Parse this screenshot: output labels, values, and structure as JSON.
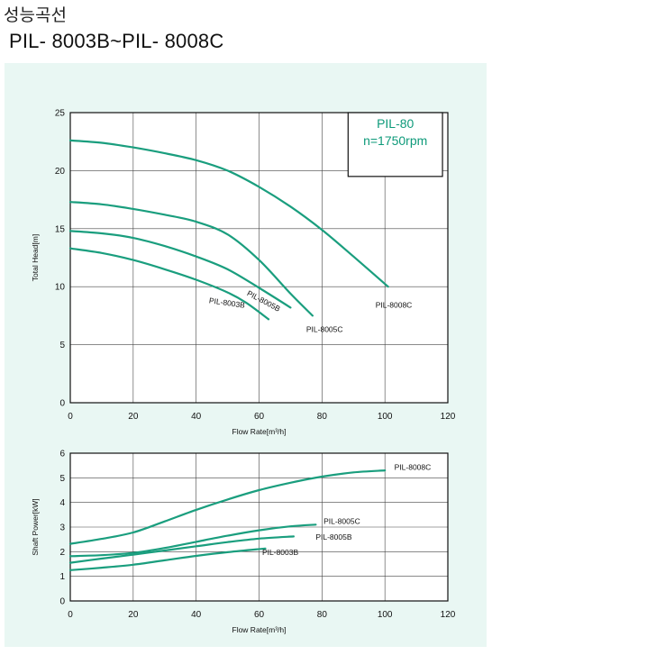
{
  "header": {
    "title": "성능곡선",
    "model_range": "PIL- 8003B~PIL- 8008C"
  },
  "colors": {
    "curve": "#1a9e7e",
    "panel_bg": "#e9f7f3",
    "note_text": "#0e9a7a"
  },
  "chart_data": [
    {
      "type": "line",
      "title": "",
      "xlabel": "Flow Rate[m³/h]",
      "ylabel": "Total Head[m]",
      "xlim": [
        0,
        120
      ],
      "ylim": [
        0,
        25
      ],
      "x_ticks": [
        "0",
        "20",
        "40",
        "60",
        "80",
        "100",
        "120"
      ],
      "y_ticks": [
        "0",
        "5",
        "10",
        "15",
        "20",
        "25"
      ],
      "grid": true,
      "annotation": {
        "line1": "PIL-80",
        "line2": "n=1750rpm"
      },
      "series": [
        {
          "name": "PIL-8003B",
          "points": [
            [
              0,
              13.3
            ],
            [
              10,
              12.9
            ],
            [
              20,
              12.3
            ],
            [
              30,
              11.5
            ],
            [
              40,
              10.6
            ],
            [
              50,
              9.5
            ],
            [
              56,
              8.6
            ],
            [
              63,
              7.2
            ]
          ]
        },
        {
          "name": "PIL-8005B",
          "points": [
            [
              0,
              14.8
            ],
            [
              10,
              14.6
            ],
            [
              20,
              14.2
            ],
            [
              30,
              13.5
            ],
            [
              40,
              12.6
            ],
            [
              50,
              11.5
            ],
            [
              60,
              9.9
            ],
            [
              70,
              8.2
            ]
          ]
        },
        {
          "name": "PIL-8005C",
          "points": [
            [
              0,
              17.3
            ],
            [
              10,
              17.1
            ],
            [
              20,
              16.7
            ],
            [
              30,
              16.2
            ],
            [
              40,
              15.6
            ],
            [
              50,
              14.5
            ],
            [
              60,
              12.3
            ],
            [
              70,
              9.4
            ],
            [
              77,
              7.5
            ]
          ]
        },
        {
          "name": "PIL-8008C",
          "points": [
            [
              0,
              22.6
            ],
            [
              10,
              22.4
            ],
            [
              20,
              22.0
            ],
            [
              30,
              21.5
            ],
            [
              40,
              20.9
            ],
            [
              50,
              20.0
            ],
            [
              60,
              18.6
            ],
            [
              70,
              16.9
            ],
            [
              80,
              14.9
            ],
            [
              90,
              12.6
            ],
            [
              101,
              10.0
            ]
          ]
        }
      ],
      "curve_labels": [
        {
          "text": "PIL-8003B",
          "x": 44,
          "y": 8.6,
          "rotate": 8
        },
        {
          "text": "PIL-8005B",
          "x": 56,
          "y": 9.3,
          "rotate": 28
        },
        {
          "text": "PIL-8005C",
          "x": 75,
          "y": 6.1,
          "rotate": 0
        },
        {
          "text": "PIL-8008C",
          "x": 97,
          "y": 8.2,
          "rotate": 0
        }
      ]
    },
    {
      "type": "line",
      "title": "",
      "xlabel": "Flow Rate[m³/h]",
      "ylabel": "Shaft Power[kW]",
      "xlim": [
        0,
        120
      ],
      "ylim": [
        0,
        6
      ],
      "x_ticks": [
        "0",
        "20",
        "40",
        "60",
        "80",
        "100",
        "120"
      ],
      "y_ticks": [
        "0",
        "1",
        "2",
        "3",
        "4",
        "5",
        "6"
      ],
      "grid": true,
      "series": [
        {
          "name": "PIL-8003B",
          "points": [
            [
              0,
              1.25
            ],
            [
              10,
              1.35
            ],
            [
              20,
              1.47
            ],
            [
              30,
              1.65
            ],
            [
              40,
              1.83
            ],
            [
              50,
              1.98
            ],
            [
              62,
              2.13
            ]
          ]
        },
        {
          "name": "PIL-8005B",
          "points": [
            [
              0,
              1.55
            ],
            [
              10,
              1.72
            ],
            [
              20,
              1.88
            ],
            [
              30,
              2.05
            ],
            [
              40,
              2.22
            ],
            [
              50,
              2.39
            ],
            [
              60,
              2.53
            ],
            [
              71,
              2.62
            ]
          ]
        },
        {
          "name": "PIL-8005C",
          "points": [
            [
              0,
              1.82
            ],
            [
              10,
              1.86
            ],
            [
              20,
              1.95
            ],
            [
              30,
              2.15
            ],
            [
              40,
              2.4
            ],
            [
              50,
              2.65
            ],
            [
              60,
              2.87
            ],
            [
              70,
              3.03
            ],
            [
              78,
              3.1
            ]
          ]
        },
        {
          "name": "PIL-8008C",
          "points": [
            [
              0,
              2.32
            ],
            [
              10,
              2.52
            ],
            [
              20,
              2.78
            ],
            [
              30,
              3.23
            ],
            [
              40,
              3.7
            ],
            [
              50,
              4.12
            ],
            [
              60,
              4.5
            ],
            [
              70,
              4.8
            ],
            [
              80,
              5.05
            ],
            [
              90,
              5.22
            ],
            [
              100,
              5.3
            ]
          ]
        }
      ],
      "curve_labels": [
        {
          "text": "PIL-8003B",
          "x": 61,
          "y": 1.86,
          "rotate": 0
        },
        {
          "text": "PIL-8005B",
          "x": 78,
          "y": 2.48,
          "rotate": 0
        },
        {
          "text": "PIL-8005C",
          "x": 80.5,
          "y": 3.13,
          "rotate": 0
        },
        {
          "text": "PIL-8008C",
          "x": 103,
          "y": 5.33,
          "rotate": 0
        }
      ]
    }
  ]
}
